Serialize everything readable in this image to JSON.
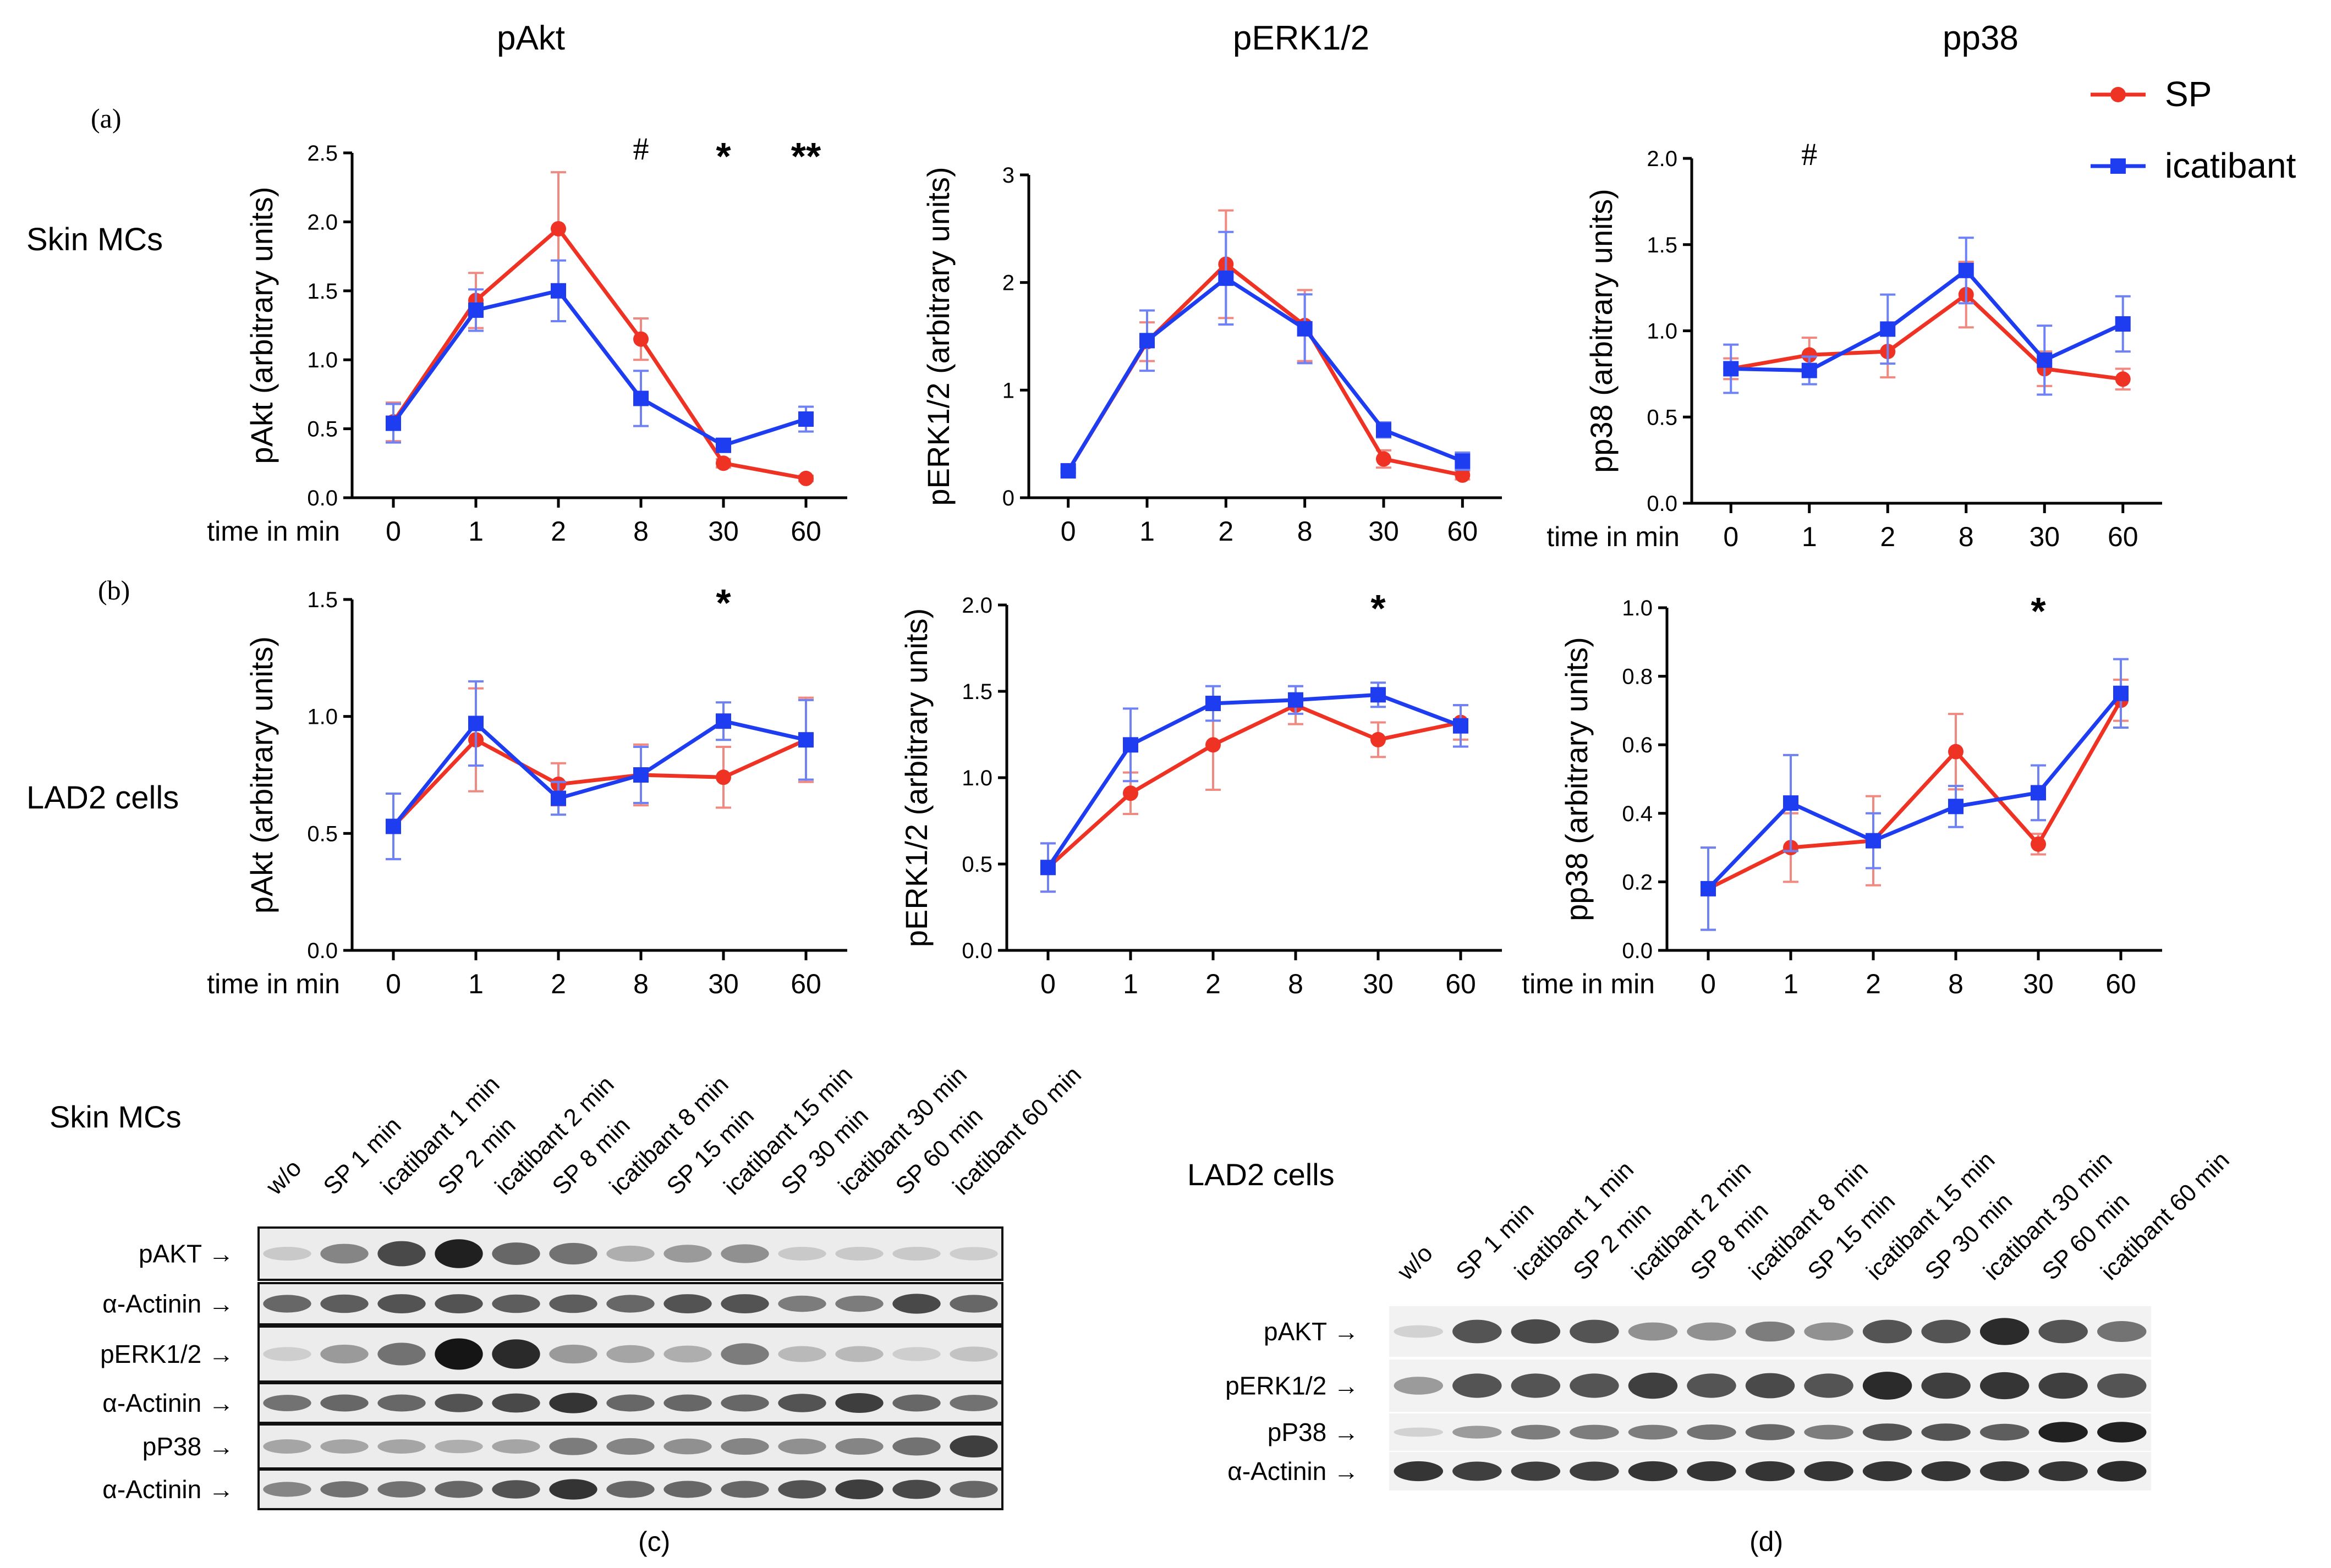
{
  "headers": {
    "pakt": "pAkt",
    "perk": "pERK1/2",
    "pp38": "pp38"
  },
  "panel_labels": {
    "a": "(a)",
    "b": "(b)",
    "c": "(c)",
    "d": "(d)"
  },
  "row_labels": {
    "skin": "Skin MCs",
    "lad2": "LAD2 cells"
  },
  "legend": {
    "sp": "SP",
    "icatibant": "icatibant"
  },
  "colors": {
    "sp": "#ee3324",
    "icatibant": "#1e3cf0"
  },
  "time_label": "time in min",
  "chart_data": [
    {
      "type": "line",
      "id": "a-pakt",
      "ylabel": "pAkt (arbitrary units)",
      "ylim": [
        0,
        2.5
      ],
      "yticks": [
        "0.0",
        "0.5",
        "1.0",
        "1.5",
        "2.0",
        "2.5"
      ],
      "time_label": true,
      "categories": [
        "0",
        "1",
        "2",
        "8",
        "30",
        "60"
      ],
      "series": [
        {
          "name": "SP",
          "values": [
            0.55,
            1.43,
            1.95,
            1.15,
            0.25,
            0.14
          ],
          "errors": [
            0.14,
            0.2,
            0.41,
            0.15,
            0.03,
            0.02
          ]
        },
        {
          "name": "icatibant",
          "values": [
            0.54,
            1.36,
            1.5,
            0.72,
            0.38,
            0.57
          ],
          "errors": [
            0.14,
            0.15,
            0.22,
            0.2,
            0.03,
            0.09
          ]
        }
      ],
      "annotations": [
        {
          "text": "#",
          "category": "8"
        },
        {
          "text": "*",
          "category": "30"
        },
        {
          "text": "**",
          "category": "60"
        }
      ]
    },
    {
      "type": "line",
      "id": "a-perk",
      "ylabel": "pERK1/2 (arbitrary units)",
      "ylim": [
        0,
        3
      ],
      "yticks": [
        "0",
        "1",
        "2",
        "3"
      ],
      "time_label": false,
      "categories": [
        "0",
        "1",
        "2",
        "8",
        "30",
        "60"
      ],
      "series": [
        {
          "name": "SP",
          "values": [
            0.25,
            1.45,
            2.17,
            1.6,
            0.36,
            0.21
          ],
          "errors": [
            0.02,
            0.18,
            0.5,
            0.33,
            0.08,
            0.04
          ]
        },
        {
          "name": "icatibant",
          "values": [
            0.25,
            1.46,
            2.04,
            1.57,
            0.63,
            0.34
          ],
          "errors": [
            0.02,
            0.28,
            0.43,
            0.32,
            0.07,
            0.08
          ]
        }
      ],
      "annotations": []
    },
    {
      "type": "line",
      "id": "a-pp38",
      "ylabel": "pp38 (arbitrary units)",
      "ylim": [
        0,
        2.0
      ],
      "yticks": [
        "0.0",
        "0.5",
        "1.0",
        "1.5",
        "2.0"
      ],
      "time_label": true,
      "categories": [
        "0",
        "1",
        "2",
        "8",
        "30",
        "60"
      ],
      "series": [
        {
          "name": "SP",
          "values": [
            0.78,
            0.86,
            0.88,
            1.21,
            0.78,
            0.72
          ],
          "errors": [
            0.06,
            0.1,
            0.15,
            0.19,
            0.1,
            0.06
          ]
        },
        {
          "name": "icatibant",
          "values": [
            0.78,
            0.77,
            1.01,
            1.35,
            0.83,
            1.04
          ],
          "errors": [
            0.14,
            0.08,
            0.2,
            0.19,
            0.2,
            0.16
          ]
        }
      ],
      "annotations": [
        {
          "text": "#",
          "category": "1"
        }
      ]
    },
    {
      "type": "line",
      "id": "b-pakt",
      "ylabel": "pAkt (arbitrary units)",
      "ylim": [
        0,
        1.5
      ],
      "yticks": [
        "0.0",
        "0.5",
        "1.0",
        "1.5"
      ],
      "time_label": true,
      "categories": [
        "0",
        "1",
        "2",
        "8",
        "30",
        "60"
      ],
      "series": [
        {
          "name": "SP",
          "values": [
            0.53,
            0.9,
            0.71,
            0.75,
            0.74,
            0.9
          ],
          "errors": [
            0.14,
            0.22,
            0.09,
            0.13,
            0.13,
            0.18
          ]
        },
        {
          "name": "icatibant",
          "values": [
            0.53,
            0.97,
            0.65,
            0.75,
            0.98,
            0.9
          ],
          "errors": [
            0.14,
            0.18,
            0.07,
            0.12,
            0.08,
            0.17
          ]
        }
      ],
      "annotations": [
        {
          "text": "*",
          "category": "30"
        }
      ]
    },
    {
      "type": "line",
      "id": "b-perk",
      "ylabel": "pERK1/2 (arbitrary units)",
      "ylim": [
        0,
        2.0
      ],
      "yticks": [
        "0.0",
        "0.5",
        "1.0",
        "1.5",
        "2.0"
      ],
      "time_label": false,
      "categories": [
        "0",
        "1",
        "2",
        "8",
        "30",
        "60"
      ],
      "series": [
        {
          "name": "SP",
          "values": [
            0.48,
            0.91,
            1.19,
            1.42,
            1.22,
            1.32
          ],
          "errors": [
            0.14,
            0.12,
            0.26,
            0.11,
            0.1,
            0.1
          ]
        },
        {
          "name": "icatibant",
          "values": [
            0.48,
            1.19,
            1.43,
            1.45,
            1.48,
            1.3
          ],
          "errors": [
            0.14,
            0.21,
            0.1,
            0.08,
            0.07,
            0.12
          ]
        }
      ],
      "annotations": [
        {
          "text": "*",
          "category": "30"
        }
      ]
    },
    {
      "type": "line",
      "id": "b-pp38",
      "ylabel": "pp38 (arbitrary units)",
      "ylim": [
        0,
        1.0
      ],
      "yticks": [
        "0.0",
        "0.2",
        "0.4",
        "0.6",
        "0.8",
        "1.0"
      ],
      "time_label": true,
      "categories": [
        "0",
        "1",
        "2",
        "8",
        "30",
        "60"
      ],
      "series": [
        {
          "name": "SP",
          "values": [
            0.18,
            0.3,
            0.32,
            0.58,
            0.31,
            0.73
          ],
          "errors": [
            0.12,
            0.1,
            0.13,
            0.11,
            0.03,
            0.06
          ]
        },
        {
          "name": "icatibant",
          "values": [
            0.18,
            0.43,
            0.32,
            0.42,
            0.46,
            0.75
          ],
          "errors": [
            0.12,
            0.14,
            0.08,
            0.06,
            0.08,
            0.1
          ]
        }
      ],
      "annotations": [
        {
          "text": "*",
          "category": "30"
        }
      ]
    }
  ],
  "blot_c": {
    "title": "Skin MCs",
    "lanes": [
      "w/o",
      "SP 1 min",
      "icatibant 1 min",
      "SP 2 min",
      "icatibant 2 min",
      "SP 8 min",
      "icatibant 8 min",
      "SP 15 min",
      "icatibant 15 min",
      "SP 30 min",
      "icatibant 30 min",
      "SP 60 min",
      "icatibant 60 min"
    ],
    "rows": [
      {
        "label": "pAKT →",
        "intensity": [
          0.12,
          0.45,
          0.75,
          0.95,
          0.6,
          0.55,
          0.25,
          0.35,
          0.4,
          0.12,
          0.12,
          0.12,
          0.1
        ]
      },
      {
        "label": "α-Actinin →",
        "intensity": [
          0.6,
          0.65,
          0.7,
          0.7,
          0.65,
          0.65,
          0.6,
          0.7,
          0.7,
          0.5,
          0.5,
          0.75,
          0.6
        ]
      },
      {
        "label": "pERK1/2 →",
        "intensity": [
          0.1,
          0.35,
          0.55,
          1.0,
          0.9,
          0.35,
          0.3,
          0.25,
          0.5,
          0.2,
          0.2,
          0.1,
          0.15
        ]
      },
      {
        "label": "α-Actinin →",
        "intensity": [
          0.55,
          0.6,
          0.6,
          0.7,
          0.75,
          0.85,
          0.6,
          0.6,
          0.6,
          0.7,
          0.8,
          0.6,
          0.55
        ]
      },
      {
        "label": "pP38 →",
        "intensity": [
          0.3,
          0.3,
          0.3,
          0.25,
          0.3,
          0.5,
          0.45,
          0.4,
          0.45,
          0.4,
          0.45,
          0.55,
          0.8
        ]
      },
      {
        "label": "α-Actinin →",
        "intensity": [
          0.45,
          0.55,
          0.55,
          0.6,
          0.7,
          0.85,
          0.6,
          0.6,
          0.6,
          0.7,
          0.8,
          0.75,
          0.6
        ]
      }
    ]
  },
  "blot_d": {
    "title": "LAD2 cells",
    "lanes": [
      "w/o",
      "SP 1 min",
      "icatibant 1 min",
      "SP 2 min",
      "icatibant 2 min",
      "SP 8 min",
      "icatibant 8 min",
      "SP 15 min",
      "icatibant 15 min",
      "SP 30 min",
      "icatibant 30 min",
      "SP 60 min",
      "icatibant 60 min"
    ],
    "rows": [
      {
        "label": "pAKT →",
        "intensity": [
          0.08,
          0.7,
          0.75,
          0.7,
          0.4,
          0.4,
          0.5,
          0.4,
          0.7,
          0.7,
          0.9,
          0.7,
          0.55
        ]
      },
      {
        "label": "pERK1/2 →",
        "intensity": [
          0.35,
          0.7,
          0.7,
          0.7,
          0.8,
          0.7,
          0.75,
          0.7,
          0.9,
          0.8,
          0.85,
          0.8,
          0.7
        ]
      },
      {
        "label": "pP38 →",
        "intensity": [
          0.08,
          0.35,
          0.5,
          0.5,
          0.5,
          0.55,
          0.6,
          0.5,
          0.7,
          0.7,
          0.65,
          0.95,
          0.95
        ]
      },
      {
        "label": "α-Actinin →",
        "intensity": [
          0.85,
          0.8,
          0.8,
          0.8,
          0.85,
          0.85,
          0.85,
          0.85,
          0.85,
          0.85,
          0.85,
          0.85,
          0.9
        ]
      }
    ]
  }
}
